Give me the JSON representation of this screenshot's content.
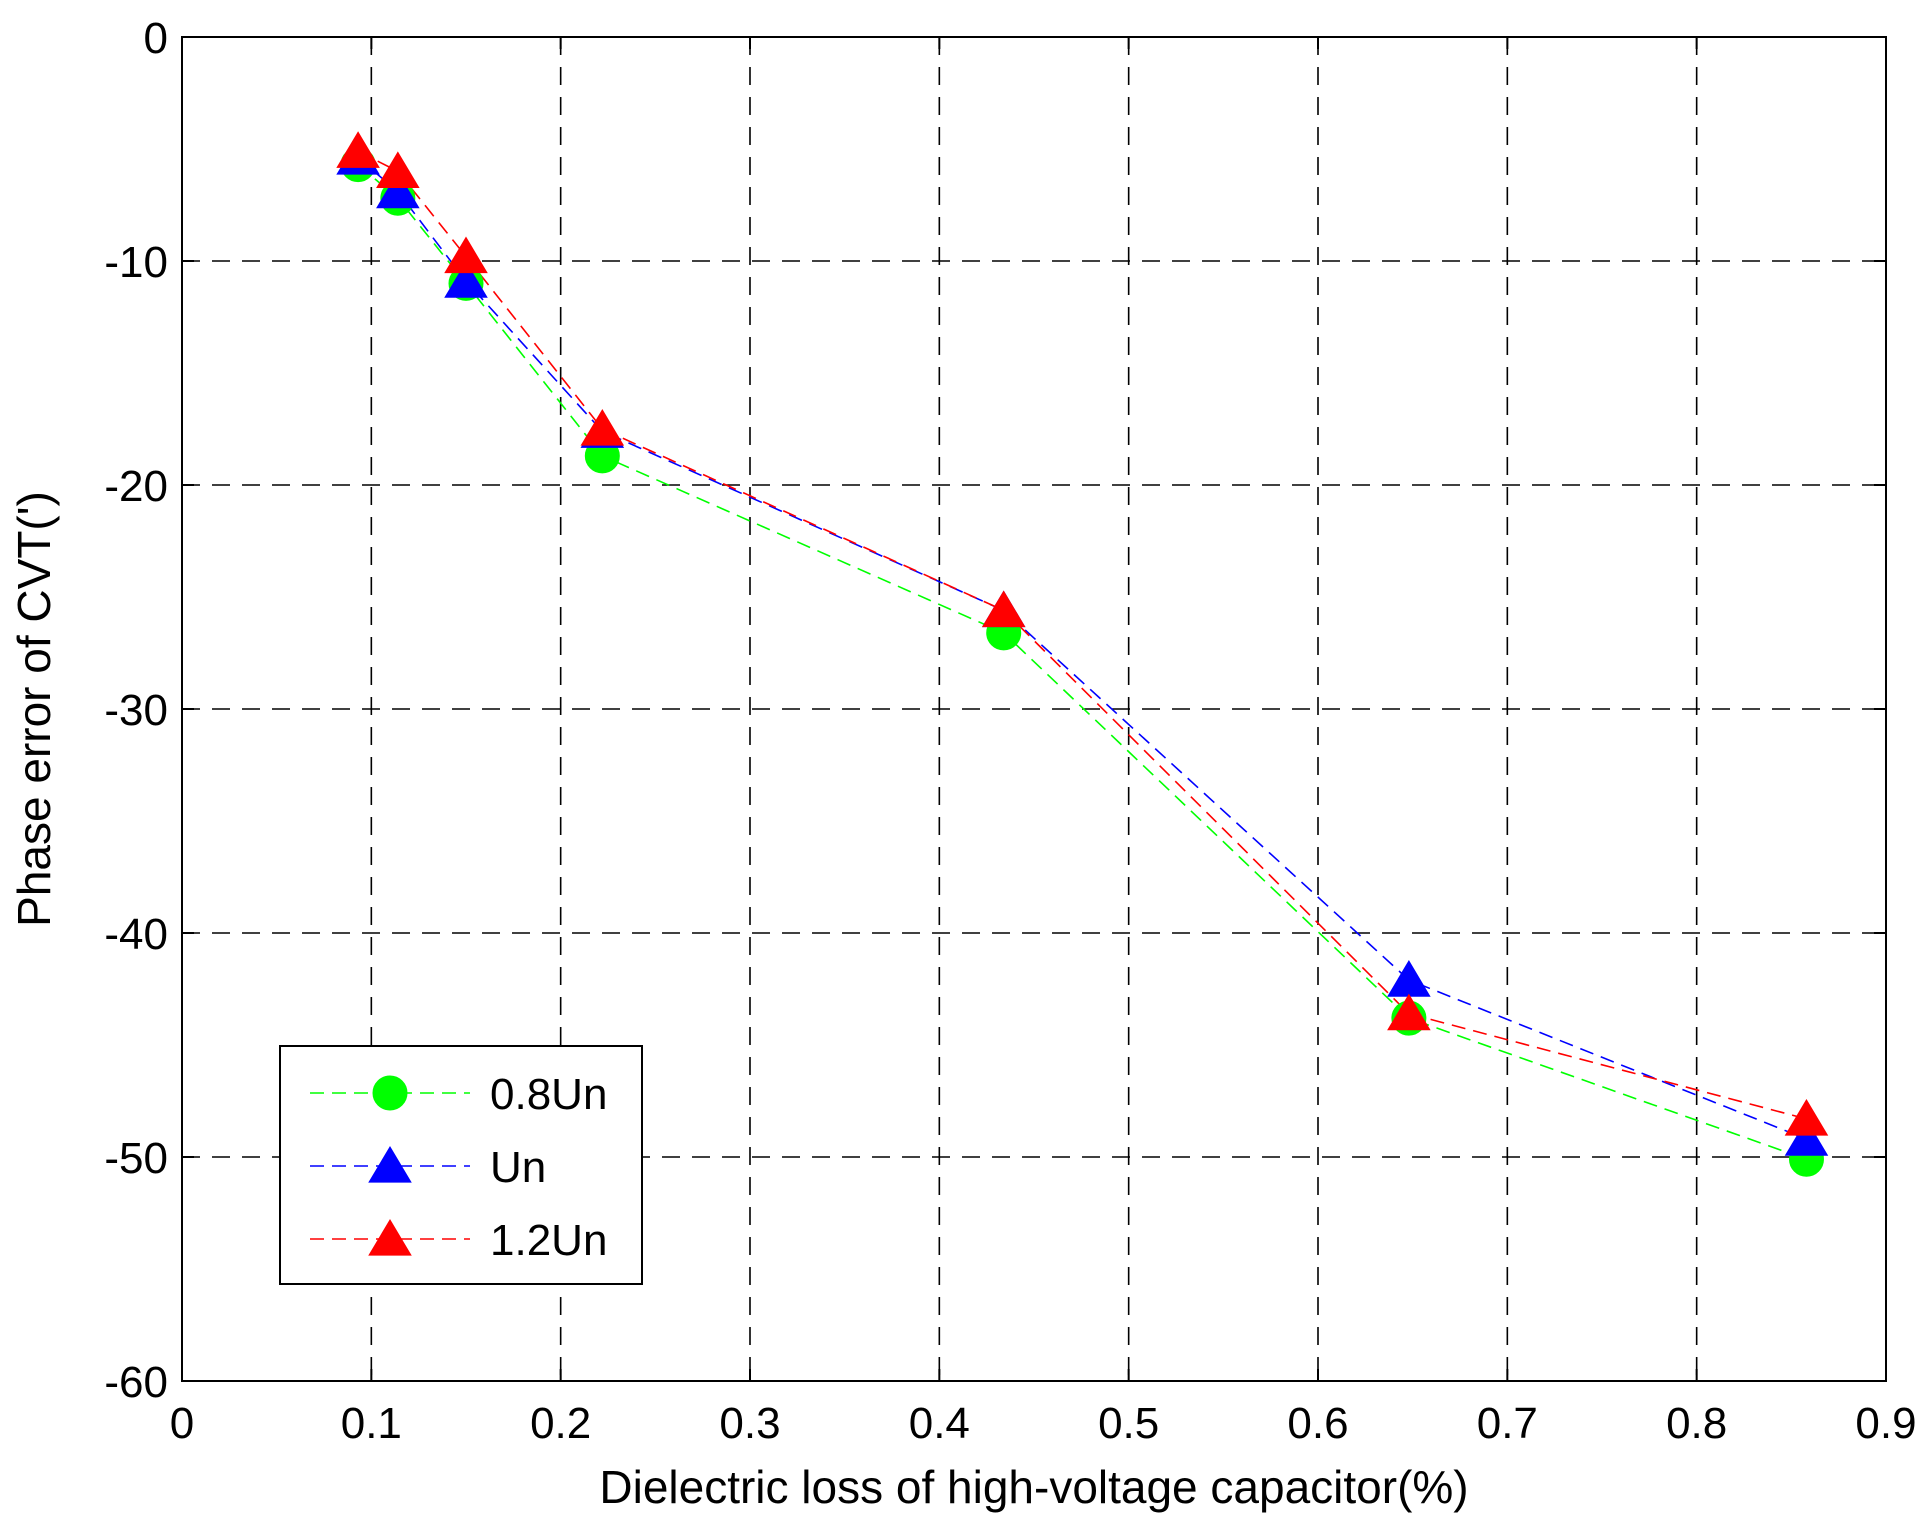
{
  "chart_data": {
    "type": "line",
    "xlabel": "Dielectric loss of high-voltage capacitor(%)",
    "ylabel": "Phase error of CVT(')",
    "xlim": [
      0,
      0.9
    ],
    "ylim": [
      -60,
      0
    ],
    "xticks": [
      "0",
      "0.1",
      "0.2",
      "0.3",
      "0.4",
      "0.5",
      "0.6",
      "0.7",
      "0.8",
      "0.9"
    ],
    "yticks": [
      "0",
      "-10",
      "-20",
      "-30",
      "-40",
      "-50",
      "-60"
    ],
    "grid": true,
    "legend_position": "bottom-left",
    "series": [
      {
        "name": "0.8Un",
        "color": "#00ff00",
        "marker": "circle",
        "x": [
          0.093,
          0.114,
          0.15,
          0.222,
          0.434,
          0.648,
          0.858
        ],
        "y": [
          -5.7,
          -7.2,
          -11.0,
          -18.7,
          -26.6,
          -43.8,
          -50.1
        ]
      },
      {
        "name": "Un",
        "color": "#0000ff",
        "marker": "triangle",
        "x": [
          0.093,
          0.114,
          0.15,
          0.222,
          0.434,
          0.648,
          0.858
        ],
        "y": [
          -5.4,
          -6.9,
          -10.9,
          -17.6,
          -25.6,
          -42.1,
          -49.2
        ]
      },
      {
        "name": "1.2Un",
        "color": "#ff0000",
        "marker": "triangle",
        "x": [
          0.093,
          0.114,
          0.15,
          0.222,
          0.434,
          0.648,
          0.858
        ],
        "y": [
          -5.1,
          -6.0,
          -9.8,
          -17.5,
          -25.6,
          -43.6,
          -48.3
        ]
      }
    ]
  }
}
